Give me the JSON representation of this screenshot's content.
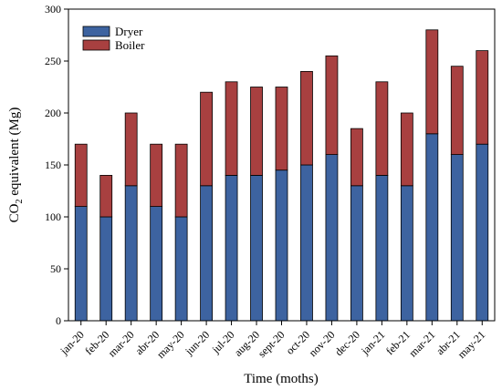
{
  "chart_data": {
    "type": "bar",
    "stacked": true,
    "categories": [
      "jan-20",
      "feb-20",
      "mar-20",
      "abr-20",
      "may-20",
      "jun-20",
      "jul-20",
      "aug-20",
      "sept-20",
      "oct-20",
      "nov-20",
      "dec-20",
      "jan-21",
      "feb-21",
      "mar-21",
      "abr-21",
      "may-21"
    ],
    "series": [
      {
        "name": "Dryer",
        "color": "#3d63a0",
        "values": [
          110,
          100,
          130,
          110,
          100,
          130,
          140,
          140,
          145,
          150,
          160,
          130,
          140,
          130,
          180,
          160,
          170
        ]
      },
      {
        "name": "Boiler",
        "color": "#a84040",
        "values": [
          60,
          40,
          70,
          60,
          70,
          90,
          90,
          85,
          80,
          90,
          95,
          55,
          90,
          70,
          100,
          85,
          90
        ]
      }
    ],
    "xlabel": "Time (moths)",
    "ylabel_main": "CO",
    "ylabel_sub": "2",
    "ylabel_rest": " equivalent (Mg)",
    "ylim": [
      0,
      300
    ],
    "yticks": [
      0,
      50,
      100,
      150,
      200,
      250,
      300
    ],
    "grid": false,
    "legend_position": "top-left"
  }
}
